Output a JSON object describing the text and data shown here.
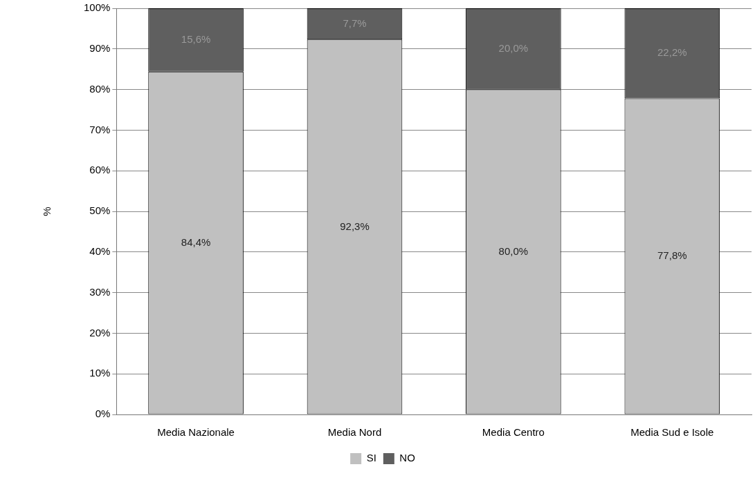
{
  "chart_data": {
    "type": "bar",
    "stacked": true,
    "ylabel": "%",
    "categories": [
      "Media Nazionale",
      "Media Nord",
      "Media Centro",
      "Media Sud e Isole"
    ],
    "series": [
      {
        "name": "SI",
        "color": "#c0c0c0",
        "values": [
          84.4,
          92.3,
          80.0,
          77.8
        ],
        "value_labels": [
          "84,4%",
          "92,3%",
          "80,0%",
          "77,8%"
        ]
      },
      {
        "name": "NO",
        "color": "#5f5f5f",
        "values": [
          15.6,
          7.7,
          20.0,
          22.2
        ],
        "value_labels": [
          "15,6%",
          "7,7%",
          "20,0%",
          "22,2%"
        ]
      }
    ],
    "ylim": [
      0,
      100
    ],
    "yticks": [
      {
        "value": 0,
        "label": "0%"
      },
      {
        "value": 10,
        "label": "10%"
      },
      {
        "value": 20,
        "label": "20%"
      },
      {
        "value": 30,
        "label": "30%"
      },
      {
        "value": 40,
        "label": "40%"
      },
      {
        "value": 50,
        "label": "50%"
      },
      {
        "value": 60,
        "label": "60%"
      },
      {
        "value": 70,
        "label": "70%"
      },
      {
        "value": 80,
        "label": "80%"
      },
      {
        "value": 90,
        "label": "90%"
      },
      {
        "value": 100,
        "label": "100%"
      }
    ],
    "grid": "y",
    "legend": "bottom"
  }
}
